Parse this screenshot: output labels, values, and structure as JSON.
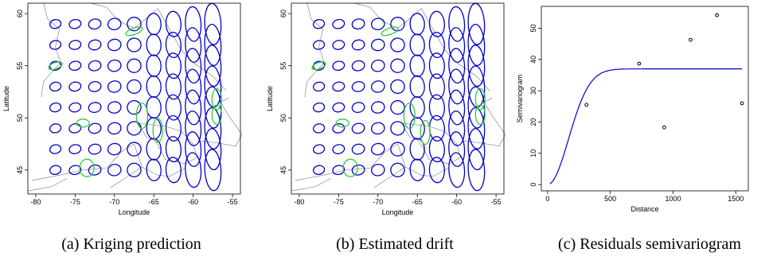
{
  "chart_data": [
    {
      "type": "scatter",
      "caption": "(a) Kriging prediction",
      "xlabel": "Longitude",
      "ylabel": "Latitude",
      "xlim": [
        -81,
        -54
      ],
      "ylim": [
        42.7,
        61
      ],
      "xticks": [
        -80,
        -75,
        -70,
        -65,
        -60,
        -55
      ],
      "yticks": [
        45,
        50,
        55,
        60
      ],
      "series": [
        {
          "color": "#0000cc",
          "grid_lon": [
            -77.5,
            -75,
            -72.5,
            -70,
            -67.5,
            -65,
            -62.5,
            -60,
            -57.5
          ],
          "grid_lat": [
            45,
            47,
            49,
            51,
            53,
            55,
            57,
            59
          ]
        },
        {
          "color": "#33cc33",
          "points": [
            [
              -67.5,
              58.3
            ],
            [
              -77.5,
              55.0
            ],
            [
              -74.0,
              49.5
            ],
            [
              -73.5,
              45.2
            ],
            [
              -66.5,
              50.2
            ],
            [
              -64.5,
              48.8
            ],
            [
              -57.0,
              51.8
            ],
            [
              -57.0,
              50.3
            ]
          ]
        }
      ]
    },
    {
      "type": "scatter",
      "caption": "(b) Estimated drift",
      "xlabel": "Longitude",
      "ylabel": "Latitude",
      "xlim": [
        -81,
        -54
      ],
      "ylim": [
        42.7,
        61
      ],
      "xticks": [
        -80,
        -75,
        -70,
        -65,
        -60,
        -55
      ],
      "yticks": [
        45,
        50,
        55,
        60
      ],
      "series": [
        {
          "color": "#0000cc",
          "grid_lon": [
            -77.5,
            -75,
            -72.5,
            -70,
            -67.5,
            -65,
            -62.5,
            -60,
            -57.5
          ],
          "grid_lat": [
            45,
            47,
            49,
            51,
            53,
            55,
            57,
            59
          ]
        },
        {
          "color": "#33cc33",
          "points": [
            [
              -68.5,
              58.3
            ],
            [
              -77.5,
              55.0
            ],
            [
              -74.5,
              49.5
            ],
            [
              -73.5,
              45.2
            ],
            [
              -66.0,
              50.2
            ],
            [
              -64.0,
              48.6
            ],
            [
              -57.0,
              51.8
            ],
            [
              -57.0,
              50.3
            ]
          ]
        }
      ]
    },
    {
      "type": "scatter",
      "caption": "(c) Residuals semivariogram",
      "xlabel": "Distance",
      "ylabel": "Semivariogram",
      "xlim": [
        -50,
        1600
      ],
      "ylim": [
        -2,
        57
      ],
      "xticks": [
        0,
        500,
        1000,
        1500
      ],
      "yticks": [
        0,
        10,
        20,
        30,
        40,
        50
      ],
      "points": {
        "x": [
          310,
          730,
          930,
          1140,
          1350,
          1550
        ],
        "y": [
          25.5,
          38.7,
          18.3,
          46.3,
          54.2,
          26.0
        ]
      },
      "model": {
        "nugget": 0,
        "sill": 37,
        "range": 350
      }
    }
  ]
}
